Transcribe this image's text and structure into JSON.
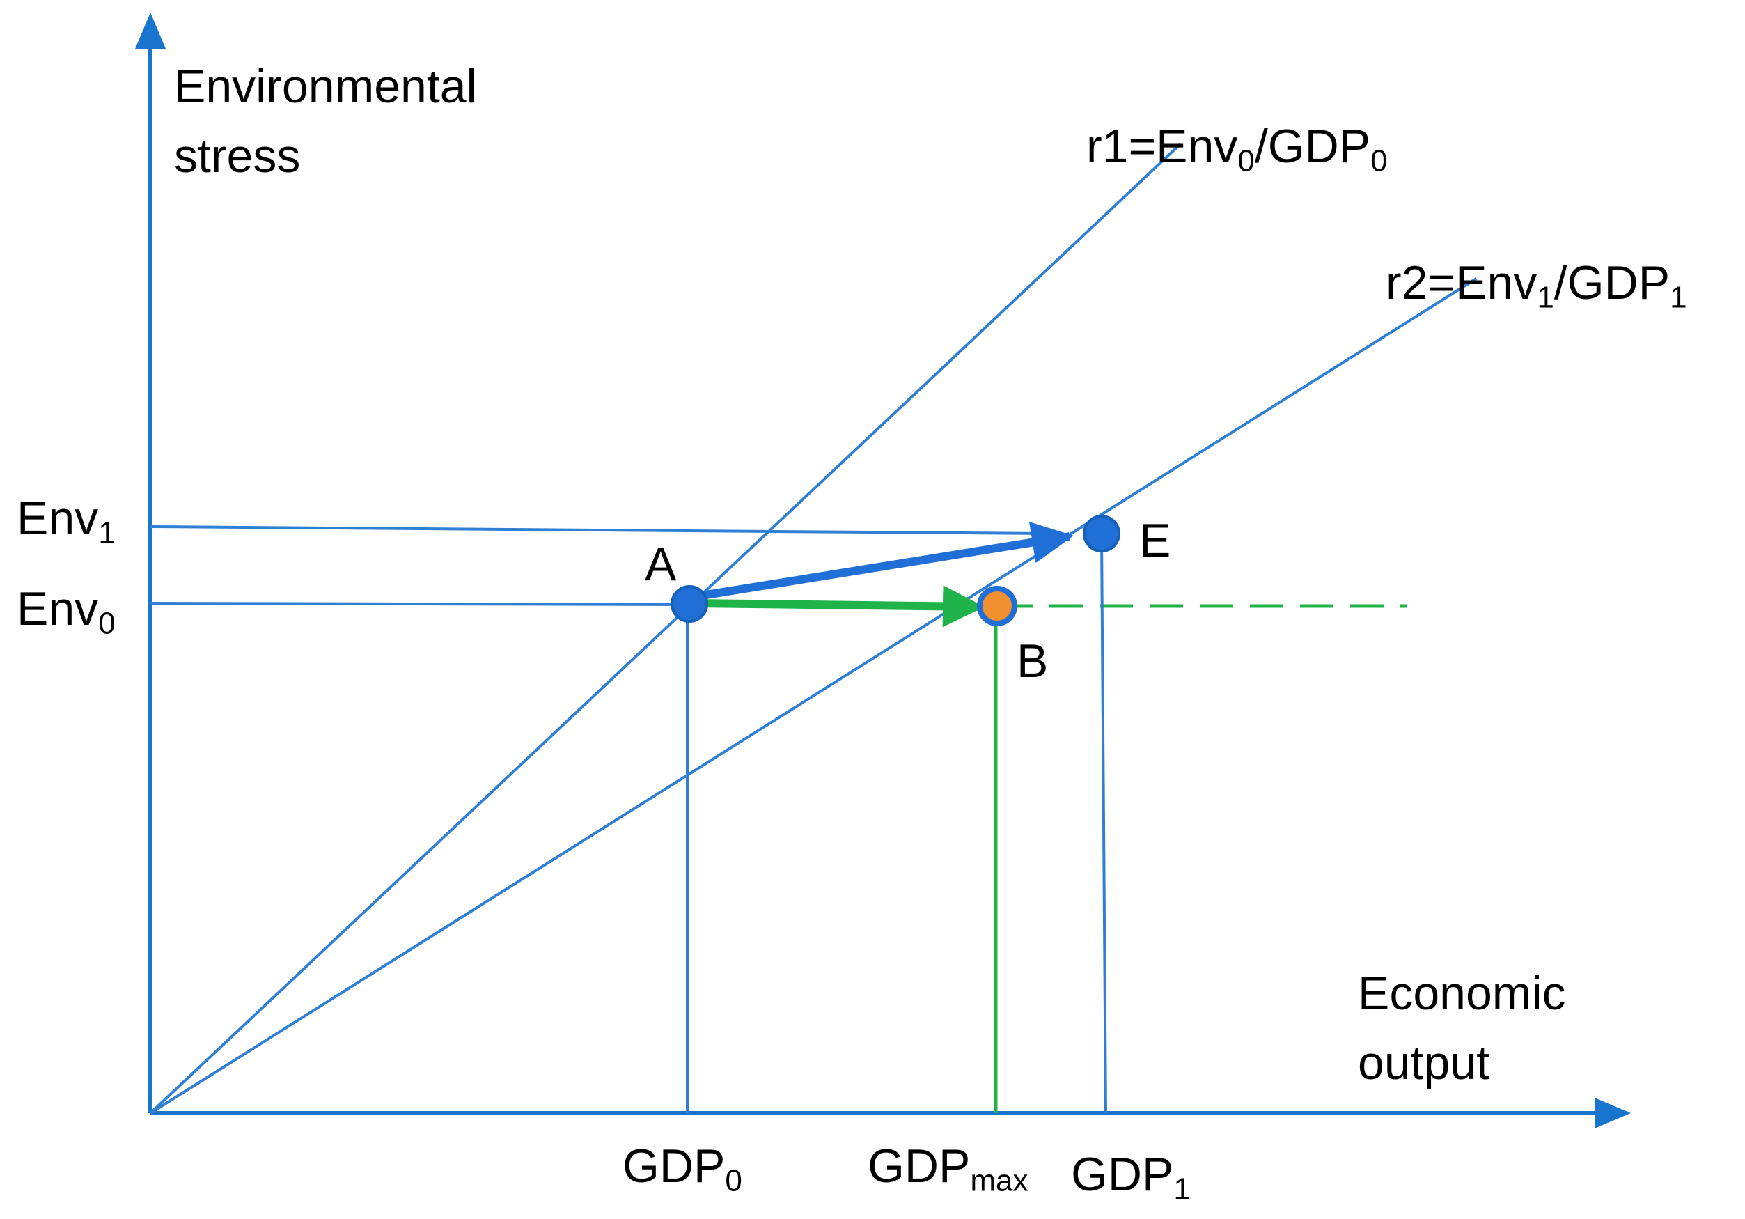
{
  "colors": {
    "axis": "#1874cd",
    "line": "#2f7fd4",
    "green": "#1fb34a",
    "point_blue": "#1f6fd6",
    "point_orange": "#f0902e",
    "text": "#000000"
  },
  "axes": {
    "y_label_line1": "Environmental",
    "y_label_line2": "stress",
    "x_label_line1": "Economic",
    "x_label_line2": "output"
  },
  "rays": {
    "r1": {
      "prefix": "r1=Env",
      "sub1": "0",
      "mid": "/GDP",
      "sub2": "0"
    },
    "r2": {
      "prefix": "r2=Env",
      "sub1": "1",
      "mid": "/GDP",
      "sub2": "1"
    }
  },
  "y_ticks": {
    "env1": {
      "base": "Env",
      "sub": "1"
    },
    "env0": {
      "base": "Env",
      "sub": "0"
    }
  },
  "x_ticks": {
    "gdp0": {
      "base": "GDP",
      "sub": "0"
    },
    "gdpmax": {
      "base": "GDP",
      "sub": "max"
    },
    "gdp1": {
      "base": "GDP",
      "sub": "1"
    }
  },
  "points": {
    "a": "A",
    "b": "B",
    "e": "E"
  }
}
